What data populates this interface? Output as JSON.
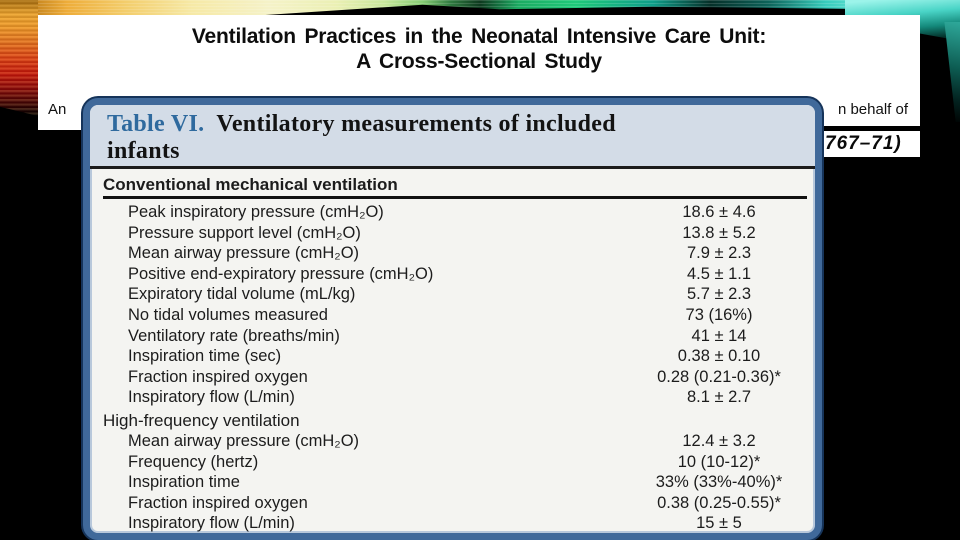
{
  "slide": {
    "title_line1": "Ventilation Practices in the Neonatal Intensive Care Unit:",
    "title_line2": "A Cross-Sectional Study",
    "authors_left_fragment": "An",
    "authors_right_fragment": "n behalf of",
    "citation_fragment": "767–71)"
  },
  "table": {
    "label": "Table VI.",
    "caption_line1": "Ventilatory measurements of included",
    "caption_line2": "infants",
    "sections": [
      {
        "header": "Conventional mechanical ventilation",
        "bold": true,
        "rule_below": true,
        "rows": [
          {
            "label": "Peak inspiratory pressure (cmH₂O)",
            "value": "18.6 ± 4.6"
          },
          {
            "label": "Pressure support level (cmH₂O)",
            "value": "13.8 ± 5.2"
          },
          {
            "label": "Mean airway pressure (cmH₂O)",
            "value": "7.9 ± 2.3"
          },
          {
            "label": "Positive end-expiratory pressure (cmH₂O)",
            "value": "4.5 ± 1.1"
          },
          {
            "label": "Expiratory tidal volume (mL/kg)",
            "value": "5.7 ± 2.3"
          },
          {
            "label": "No tidal volumes measured",
            "value": "73 (16%)"
          },
          {
            "label": "Ventilatory rate (breaths/min)",
            "value": "41 ± 14"
          },
          {
            "label": "Inspiration time (sec)",
            "value": "0.38 ± 0.10"
          },
          {
            "label": "Fraction inspired oxygen",
            "value": "0.28 (0.21-0.36)*"
          },
          {
            "label": "Inspiratory flow (L/min)",
            "value": "8.1 ± 2.7"
          }
        ]
      },
      {
        "header": "High-frequency ventilation",
        "bold": false,
        "rule_below": false,
        "rows": [
          {
            "label": "Mean airway pressure (cmH₂O)",
            "value": "12.4 ± 3.2"
          },
          {
            "label": "Frequency (hertz)",
            "value": "10 (10-12)*"
          },
          {
            "label": "Inspiration time",
            "value": "33% (33%-40%)*"
          },
          {
            "label": "Fraction inspired oxygen",
            "value": "0.38 (0.25-0.55)*"
          },
          {
            "label": "Inspiratory flow (L/min)",
            "value": "15 ± 5"
          }
        ]
      }
    ]
  },
  "colors": {
    "slide_background": "#000000",
    "band_background": "#ffffff",
    "table_border_blue": "#40699a",
    "table_header_fill": "#d3dce7",
    "table_label_blue": "#2f6a9e",
    "ribbon_orange": "#eead3a",
    "ribbon_red": "#c5150a",
    "ribbon_teal": "#49d4c6"
  }
}
